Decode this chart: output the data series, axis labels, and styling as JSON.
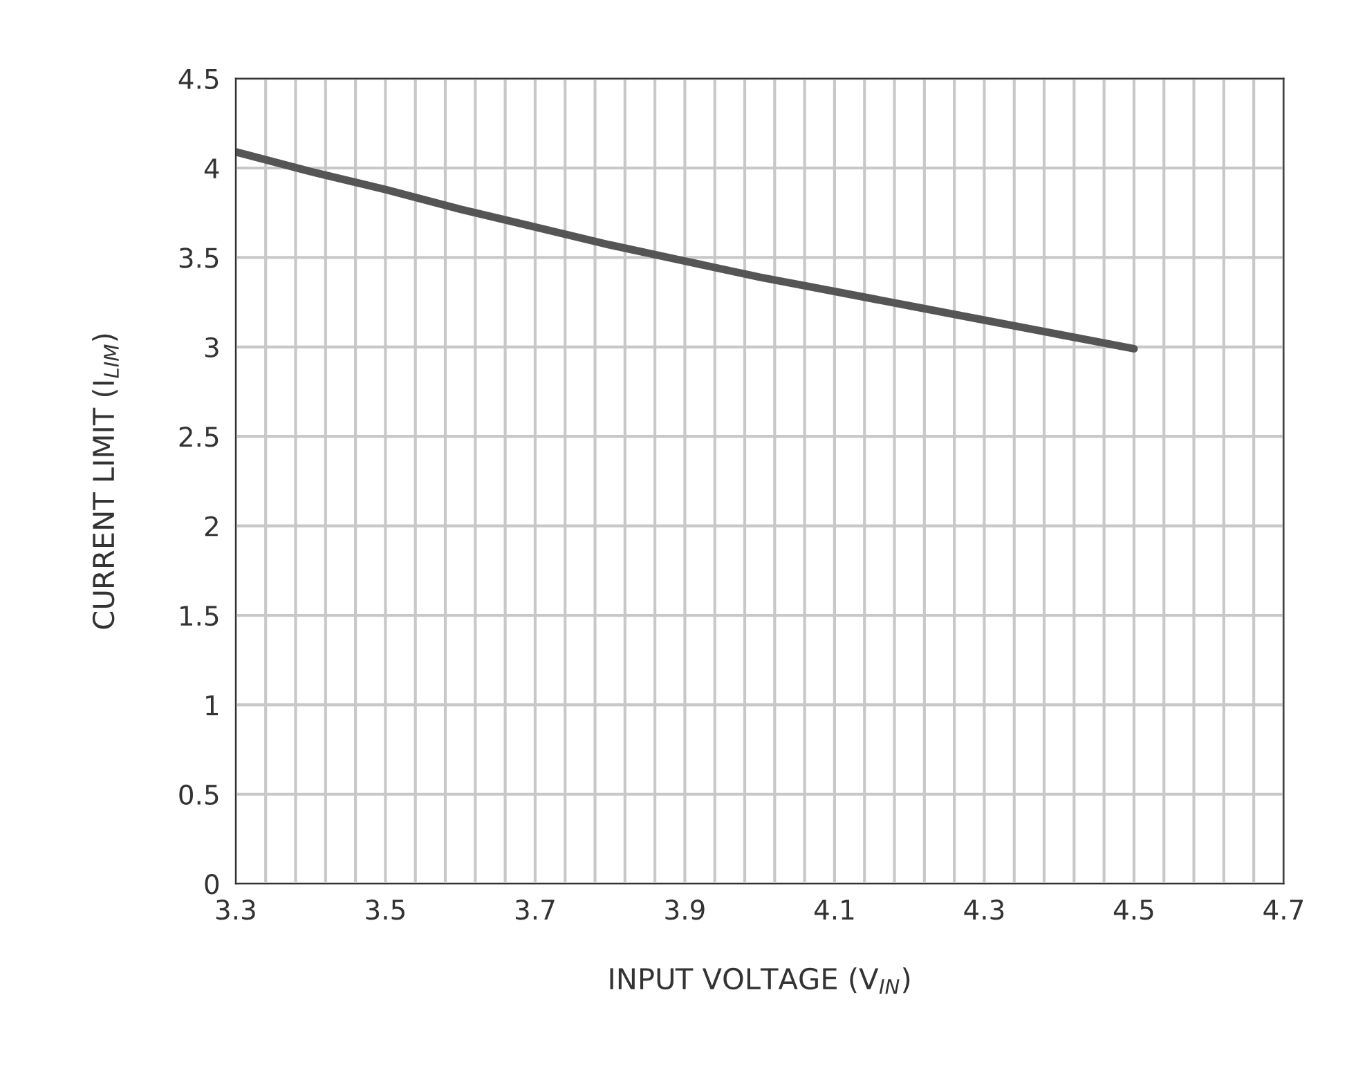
{
  "chart_data": {
    "type": "line",
    "xlabel": "INPUT VOLTAGE (V$_{IN}$)",
    "ylabel": "CURRENT LIMIT (I$_{LIM}$)",
    "x": [
      3.3,
      3.4,
      3.5,
      3.6,
      3.7,
      3.8,
      3.9,
      4.0,
      4.1,
      4.2,
      4.3,
      4.4,
      4.5
    ],
    "series": [
      {
        "color": "#555555",
        "values": [
          4.09,
          3.98,
          3.88,
          3.77,
          3.67,
          3.57,
          3.48,
          3.39,
          3.31,
          3.23,
          3.15,
          3.07,
          2.99
        ]
      }
    ],
    "xlim": [
      3.3,
      4.7
    ],
    "xticks": [
      {
        "value": 3.3,
        "label": "3.3"
      },
      {
        "value": 3.34,
        "label": null
      },
      {
        "value": 3.38,
        "label": null
      },
      {
        "value": 3.42,
        "label": null
      },
      {
        "value": 3.46,
        "label": null
      },
      {
        "value": 3.5,
        "label": "3.5"
      },
      {
        "value": 3.54,
        "label": null
      },
      {
        "value": 3.58,
        "label": null
      },
      {
        "value": 3.62,
        "label": null
      },
      {
        "value": 3.66,
        "label": null
      },
      {
        "value": 3.7,
        "label": "3.7"
      },
      {
        "value": 3.74,
        "label": null
      },
      {
        "value": 3.78,
        "label": null
      },
      {
        "value": 3.82,
        "label": null
      },
      {
        "value": 3.86,
        "label": null
      },
      {
        "value": 3.9,
        "label": "3.9"
      },
      {
        "value": 3.94,
        "label": null
      },
      {
        "value": 3.98,
        "label": null
      },
      {
        "value": 4.02,
        "label": null
      },
      {
        "value": 4.06,
        "label": null
      },
      {
        "value": 4.1,
        "label": "4.1"
      },
      {
        "value": 4.14,
        "label": null
      },
      {
        "value": 4.18,
        "label": null
      },
      {
        "value": 4.22,
        "label": null
      },
      {
        "value": 4.26,
        "label": null
      },
      {
        "value": 4.3,
        "label": "4.3"
      },
      {
        "value": 4.34,
        "label": null
      },
      {
        "value": 4.38,
        "label": null
      },
      {
        "value": 4.42,
        "label": null
      },
      {
        "value": 4.46,
        "label": null
      },
      {
        "value": 4.5,
        "label": "4.5"
      },
      {
        "value": 4.54,
        "label": null
      },
      {
        "value": 4.58,
        "label": null
      },
      {
        "value": 4.62,
        "label": null
      },
      {
        "value": 4.66,
        "label": null
      },
      {
        "value": 4.7,
        "label": "4.7"
      }
    ],
    "ylim": [
      0,
      4.5
    ],
    "yticks": [
      0,
      0.5,
      1,
      1.5,
      2,
      2.5,
      3,
      3.5,
      4,
      4.5
    ],
    "grid": true,
    "marker": "none",
    "line_style": "solid",
    "legend": false
  }
}
